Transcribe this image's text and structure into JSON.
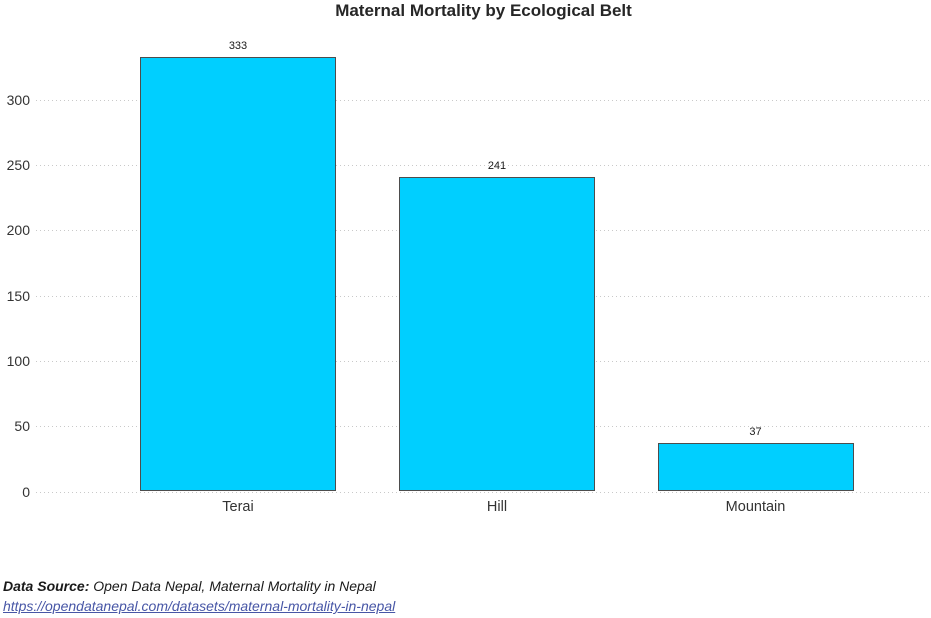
{
  "chart_data": {
    "type": "bar",
    "title": "Maternal Mortality by Ecological Belt",
    "categories": [
      "Terai",
      "Hill",
      "Mountain"
    ],
    "values": [
      333,
      241,
      37
    ],
    "bar_labels": [
      "333",
      "241",
      "37"
    ],
    "xlabel": "",
    "ylabel": "",
    "ylim": [
      0,
      340
    ],
    "yticks": [
      0,
      50,
      100,
      150,
      200,
      250,
      300
    ],
    "grid": "horizontal-dotted",
    "legend": "none",
    "colors": {
      "bar_fill": "#00CFFF",
      "bar_border": "#4D4D4D",
      "gridline": "#C9C9C9",
      "title_text": "#262626",
      "tick_text": "#333333"
    }
  },
  "footer": {
    "source_label": "Data Source:",
    "source_text": " Open Data Nepal, Maternal Mortality in Nepal",
    "source_url": "https://opendatanepal.com/datasets/maternal-mortality-in-nepal",
    "link_color": "#4756A6"
  }
}
